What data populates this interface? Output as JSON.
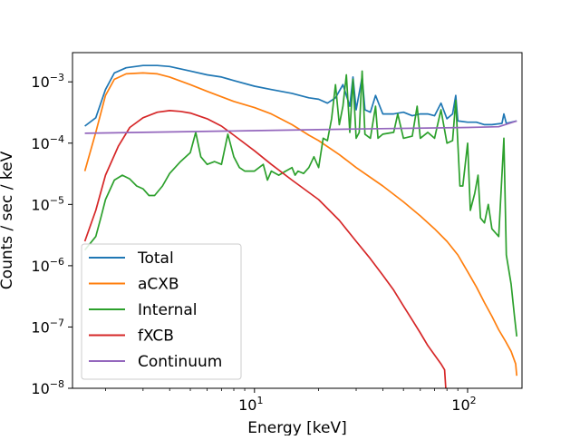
{
  "chart_data": {
    "type": "line",
    "title": "",
    "xlabel": "Energy [keV]",
    "ylabel": "Counts / sec / keV",
    "xscale": "log",
    "yscale": "log",
    "xlim": [
      1.4,
      180
    ],
    "ylim": [
      1e-08,
      0.003
    ],
    "grid": false,
    "legend_position": "lower-left",
    "x_ticks": [
      {
        "value": 10,
        "base": "10",
        "exp": "1"
      },
      {
        "value": 100,
        "base": "10",
        "exp": "2"
      }
    ],
    "y_ticks": [
      {
        "value": 1e-08,
        "base": "10",
        "exp": "−8"
      },
      {
        "value": 1e-07,
        "base": "10",
        "exp": "−7"
      },
      {
        "value": 1e-06,
        "base": "10",
        "exp": "−6"
      },
      {
        "value": 1e-05,
        "base": "10",
        "exp": "−5"
      },
      {
        "value": 0.0001,
        "base": "10",
        "exp": "−4"
      },
      {
        "value": 0.001,
        "base": "10",
        "exp": "−3"
      }
    ],
    "series": [
      {
        "name": "Total",
        "color": "#1f77b4",
        "points": [
          [
            1.6,
            0.00019
          ],
          [
            1.8,
            0.00026
          ],
          [
            2.0,
            0.00075
          ],
          [
            2.2,
            0.0014
          ],
          [
            2.5,
            0.0017
          ],
          [
            3.0,
            0.00185
          ],
          [
            3.5,
            0.00185
          ],
          [
            4.0,
            0.00178
          ],
          [
            5.0,
            0.0015
          ],
          [
            6.0,
            0.0013
          ],
          [
            7.0,
            0.0012
          ],
          [
            8.0,
            0.00105
          ],
          [
            10.0,
            0.00085
          ],
          [
            12.0,
            0.00075
          ],
          [
            15.0,
            0.00065
          ],
          [
            18.0,
            0.00055
          ],
          [
            20.0,
            0.00052
          ],
          [
            22.0,
            0.00045
          ],
          [
            24.0,
            0.00055
          ],
          [
            26.0,
            0.0009
          ],
          [
            28.0,
            0.0004
          ],
          [
            29.0,
            0.0012
          ],
          [
            30.0,
            0.00035
          ],
          [
            32.0,
            0.0012
          ],
          [
            33.0,
            0.00035
          ],
          [
            35.0,
            0.00032
          ],
          [
            37.0,
            0.0006
          ],
          [
            40.0,
            0.0003
          ],
          [
            45.0,
            0.0003
          ],
          [
            50.0,
            0.00032
          ],
          [
            55.0,
            0.00028
          ],
          [
            60.0,
            0.0003
          ],
          [
            65.0,
            0.0003
          ],
          [
            70.0,
            0.00028
          ],
          [
            75.0,
            0.00045
          ],
          [
            80.0,
            0.00025
          ],
          [
            85.0,
            0.0003
          ],
          [
            88.0,
            0.0006
          ],
          [
            90.0,
            0.00023
          ],
          [
            100.0,
            0.00022
          ],
          [
            110.0,
            0.00022
          ],
          [
            120.0,
            0.0002
          ],
          [
            130.0,
            0.0002
          ],
          [
            145.0,
            0.00021
          ],
          [
            148.0,
            0.0003
          ],
          [
            152.0,
            0.00021
          ],
          [
            170.0,
            0.00023
          ]
        ]
      },
      {
        "name": "aCXB",
        "color": "#ff7f0e",
        "points": [
          [
            1.6,
            3.5e-05
          ],
          [
            1.8,
            0.00015
          ],
          [
            2.0,
            0.0006
          ],
          [
            2.2,
            0.0011
          ],
          [
            2.5,
            0.00135
          ],
          [
            3.0,
            0.0014
          ],
          [
            3.5,
            0.00135
          ],
          [
            4.0,
            0.0012
          ],
          [
            5.0,
            0.0009
          ],
          [
            6.0,
            0.0007
          ],
          [
            8.0,
            0.00048
          ],
          [
            10.0,
            0.00038
          ],
          [
            12.0,
            0.0003
          ],
          [
            15.0,
            0.0002
          ],
          [
            18.0,
            0.000135
          ],
          [
            20.0,
            0.00011
          ],
          [
            25.0,
            6.5e-05
          ],
          [
            30.0,
            4e-05
          ],
          [
            40.0,
            2e-05
          ],
          [
            50.0,
            1.1e-05
          ],
          [
            60.0,
            6.5e-06
          ],
          [
            70.0,
            4e-06
          ],
          [
            80.0,
            2.5e-06
          ],
          [
            90.0,
            1.5e-06
          ],
          [
            100.0,
            8e-07
          ],
          [
            110.0,
            4.5e-07
          ],
          [
            120.0,
            2.5e-07
          ],
          [
            130.0,
            1.5e-07
          ],
          [
            140.0,
            9e-08
          ],
          [
            150.0,
            6e-08
          ],
          [
            160.0,
            4e-08
          ],
          [
            168.0,
            2.5e-08
          ],
          [
            170.0,
            1.6e-08
          ]
        ]
      },
      {
        "name": "Internal",
        "color": "#2ca02c",
        "points": [
          [
            1.6,
            1.8e-06
          ],
          [
            1.8,
            3e-06
          ],
          [
            1.9,
            6e-06
          ],
          [
            2.0,
            1.2e-05
          ],
          [
            2.2,
            2.5e-05
          ],
          [
            2.4,
            3e-05
          ],
          [
            2.6,
            2.6e-05
          ],
          [
            2.8,
            2e-05
          ],
          [
            3.0,
            1.8e-05
          ],
          [
            3.2,
            1.4e-05
          ],
          [
            3.4,
            1.4e-05
          ],
          [
            3.7,
            2e-05
          ],
          [
            4.0,
            3.2e-05
          ],
          [
            4.5,
            5e-05
          ],
          [
            5.0,
            7e-05
          ],
          [
            5.3,
            0.00015
          ],
          [
            5.6,
            6e-05
          ],
          [
            6.0,
            4.5e-05
          ],
          [
            6.5,
            5e-05
          ],
          [
            7.0,
            4.5e-05
          ],
          [
            7.5,
            0.00014
          ],
          [
            8.0,
            6e-05
          ],
          [
            8.5,
            4e-05
          ],
          [
            9.0,
            3.5e-05
          ],
          [
            10.0,
            3.5e-05
          ],
          [
            11.0,
            4.5e-05
          ],
          [
            11.5,
            2.5e-05
          ],
          [
            12.0,
            3.5e-05
          ],
          [
            13.0,
            3e-05
          ],
          [
            14.0,
            3.5e-05
          ],
          [
            15.0,
            4e-05
          ],
          [
            15.5,
            3e-05
          ],
          [
            16.0,
            3.5e-05
          ],
          [
            17.0,
            3.2e-05
          ],
          [
            18.0,
            4e-05
          ],
          [
            19.0,
            6e-05
          ],
          [
            20.0,
            4e-05
          ],
          [
            21.0,
            0.00012
          ],
          [
            22.0,
            0.00011
          ],
          [
            23.0,
            0.00025
          ],
          [
            24.0,
            0.0009
          ],
          [
            25.0,
            0.0002
          ],
          [
            26.0,
            0.0004
          ],
          [
            27.0,
            0.0013
          ],
          [
            28.0,
            0.00015
          ],
          [
            29.0,
            0.0011
          ],
          [
            30.0,
            0.00012
          ],
          [
            31.0,
            0.00015
          ],
          [
            32.0,
            0.0015
          ],
          [
            33.0,
            0.00014
          ],
          [
            35.0,
            0.00012
          ],
          [
            37.0,
            0.0004
          ],
          [
            38.0,
            0.00012
          ],
          [
            40.0,
            0.00014
          ],
          [
            45.0,
            0.00015
          ],
          [
            47.0,
            0.0003
          ],
          [
            50.0,
            0.00012
          ],
          [
            55.0,
            0.00013
          ],
          [
            58.0,
            0.0004
          ],
          [
            60.0,
            0.00012
          ],
          [
            65.0,
            0.00015
          ],
          [
            70.0,
            0.00012
          ],
          [
            75.0,
            0.00035
          ],
          [
            80.0,
            0.0001
          ],
          [
            85.0,
            0.00011
          ],
          [
            88.0,
            0.0005
          ],
          [
            90.0,
            0.0001
          ],
          [
            92.0,
            2e-05
          ],
          [
            95.0,
            2e-05
          ],
          [
            100.0,
            0.0001
          ],
          [
            103.0,
            8e-06
          ],
          [
            108.0,
            1.5e-05
          ],
          [
            112.0,
            3e-05
          ],
          [
            115.0,
            6e-06
          ],
          [
            120.0,
            5e-06
          ],
          [
            125.0,
            1e-05
          ],
          [
            130.0,
            4e-06
          ],
          [
            140.0,
            3e-06
          ],
          [
            148.0,
            0.00012
          ],
          [
            152.0,
            1.5e-06
          ],
          [
            160.0,
            5e-07
          ],
          [
            166.0,
            1.5e-07
          ],
          [
            170.0,
            7e-08
          ]
        ]
      },
      {
        "name": "fXCB",
        "color": "#d62728",
        "points": [
          [
            1.6,
            2.5e-06
          ],
          [
            1.8,
            8e-06
          ],
          [
            2.0,
            3e-05
          ],
          [
            2.3,
            9e-05
          ],
          [
            2.6,
            0.00018
          ],
          [
            3.0,
            0.00026
          ],
          [
            3.5,
            0.00032
          ],
          [
            4.0,
            0.00034
          ],
          [
            4.5,
            0.00033
          ],
          [
            5.0,
            0.00031
          ],
          [
            6.0,
            0.00025
          ],
          [
            7.0,
            0.00019
          ],
          [
            8.0,
            0.000135
          ],
          [
            10.0,
            7.5e-05
          ],
          [
            12.0,
            4.5e-05
          ],
          [
            15.0,
            2.5e-05
          ],
          [
            20.0,
            1.2e-05
          ],
          [
            25.0,
            5.5e-06
          ],
          [
            30.0,
            2.5e-06
          ],
          [
            35.0,
            1.3e-06
          ],
          [
            40.0,
            7e-07
          ],
          [
            45.0,
            4e-07
          ],
          [
            50.0,
            2.2e-07
          ],
          [
            55.0,
            1.3e-07
          ],
          [
            60.0,
            8e-08
          ],
          [
            65.0,
            5e-08
          ],
          [
            70.0,
            3.5e-08
          ],
          [
            75.0,
            2.5e-08
          ],
          [
            78.0,
            2e-08
          ],
          [
            79.0,
            1e-08
          ]
        ]
      },
      {
        "name": "Continuum",
        "color": "#9467bd",
        "points": [
          [
            1.6,
            0.000145
          ],
          [
            3.0,
            0.00015
          ],
          [
            10.0,
            0.00016
          ],
          [
            30.0,
            0.00017
          ],
          [
            100.0,
            0.00018
          ],
          [
            140.0,
            0.000185
          ],
          [
            170.0,
            0.00023
          ]
        ]
      }
    ]
  }
}
